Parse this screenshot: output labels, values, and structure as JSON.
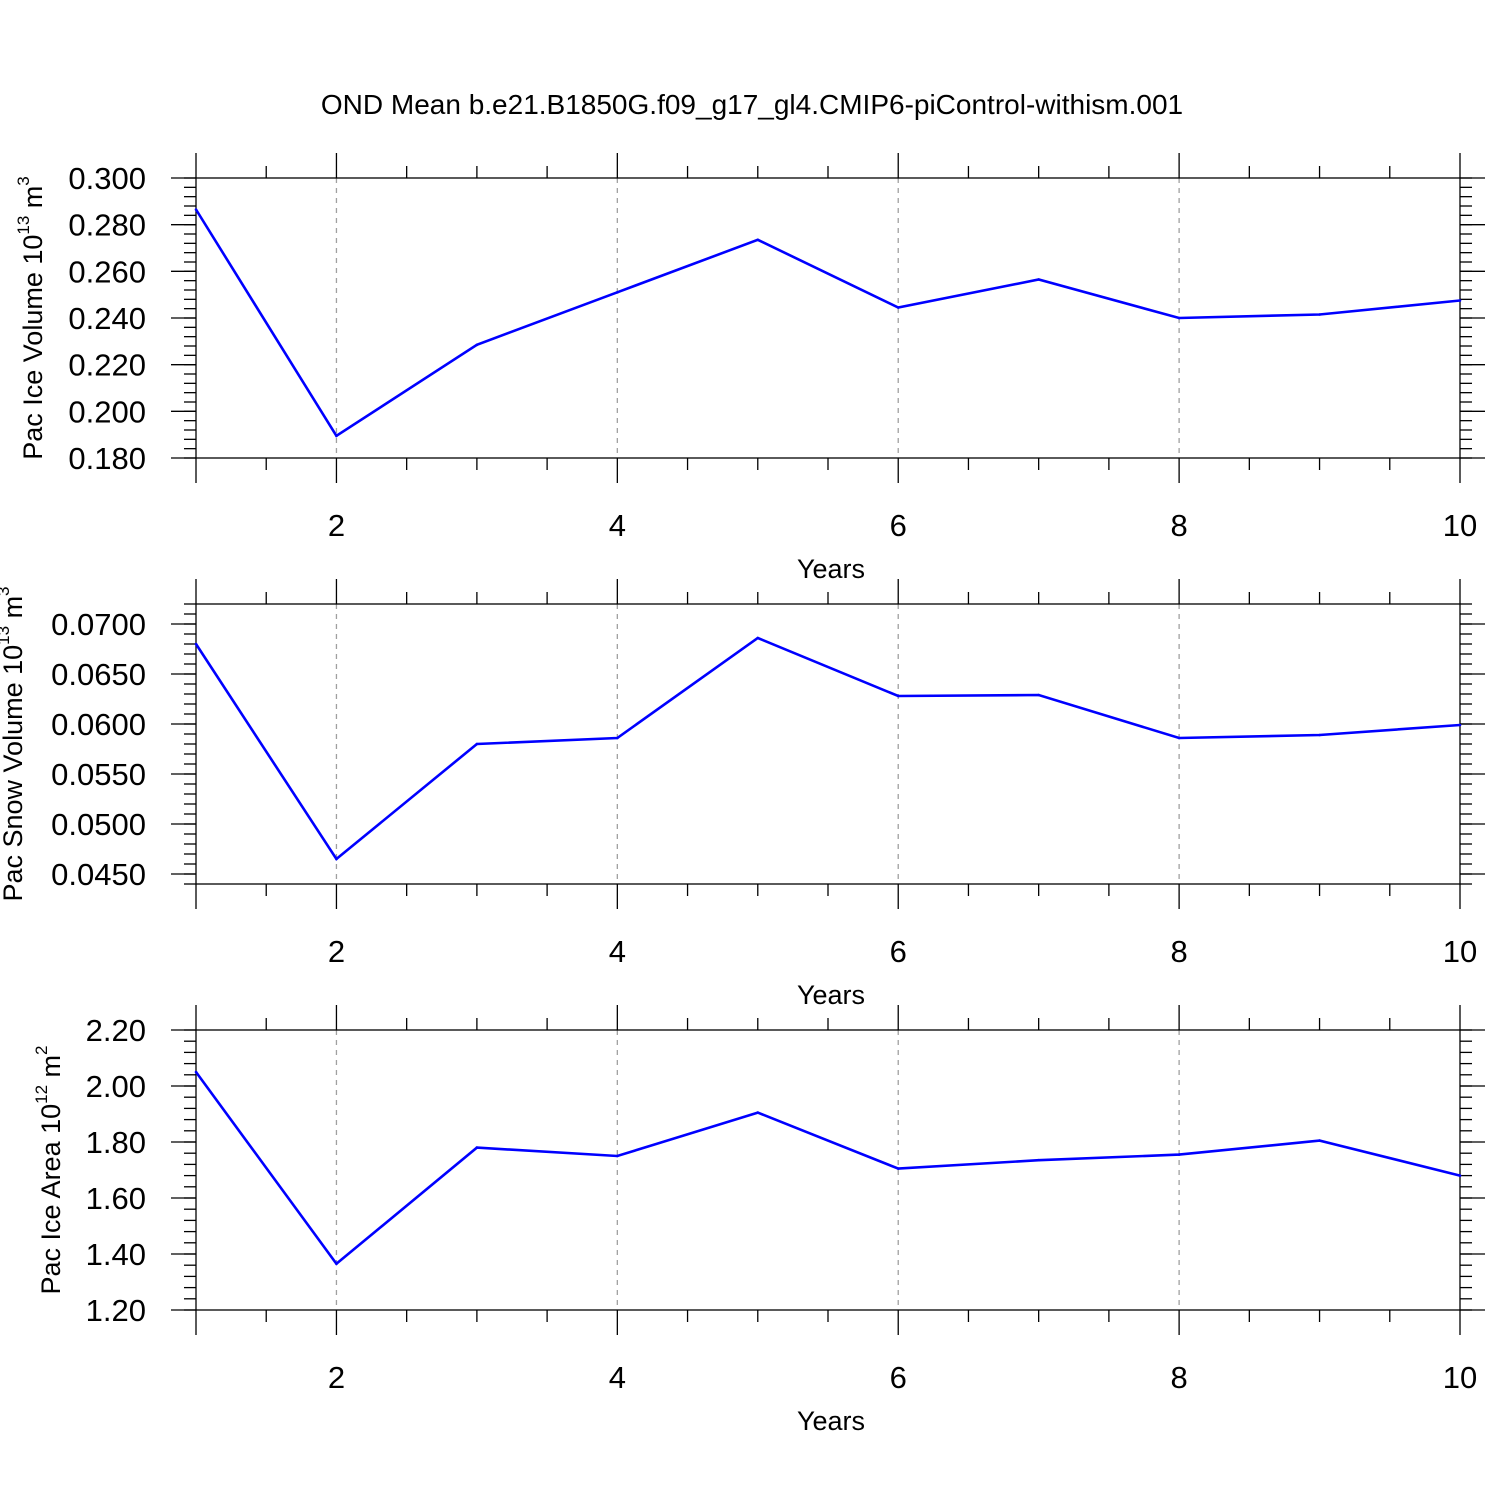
{
  "title": "OND Mean b.e21.B1850G.f09_g17_gl4.CMIP6-piControl-withism.001",
  "line_color": "#0000ff",
  "chart_data": [
    {
      "type": "line",
      "ylabel": {
        "text": "Pac Ice Volume 10",
        "exp": "13",
        "unit": " m",
        "unit_exp": "3"
      },
      "xlabel": "Years",
      "xlim": [
        1,
        10
      ],
      "ylim": [
        0.18,
        0.3
      ],
      "x_ticks": [
        2,
        4,
        6,
        8,
        10
      ],
      "y_ticks": [
        "0.180",
        "0.200",
        "0.220",
        "0.240",
        "0.260",
        "0.280",
        "0.300"
      ],
      "x_grid": "dashed",
      "x": [
        1,
        2,
        3,
        4,
        5,
        6,
        7,
        8,
        9,
        10
      ],
      "values": [
        0.2865,
        0.1895,
        0.2285,
        0.251,
        0.2735,
        0.2445,
        0.2565,
        0.24,
        0.2415,
        0.2475
      ]
    },
    {
      "type": "line",
      "ylabel": {
        "text": "Pac Snow Volume 10",
        "exp": "13",
        "unit": " m",
        "unit_exp": "3"
      },
      "xlabel": "Years",
      "xlim": [
        1,
        10
      ],
      "ylim": [
        0.044,
        0.072
      ],
      "x_ticks": [
        2,
        4,
        6,
        8,
        10
      ],
      "y_ticks": [
        "0.0450",
        "0.0500",
        "0.0550",
        "0.0600",
        "0.0650",
        "0.0700"
      ],
      "x_grid": "dashed",
      "x": [
        1,
        2,
        3,
        4,
        5,
        6,
        7,
        8,
        9,
        10
      ],
      "values": [
        0.068,
        0.0465,
        0.058,
        0.0586,
        0.0686,
        0.0628,
        0.0629,
        0.0586,
        0.0589,
        0.0599
      ]
    },
    {
      "type": "line",
      "ylabel": {
        "text": "Pac Ice Area 10",
        "exp": "12",
        "unit": " m",
        "unit_exp": "2"
      },
      "xlabel": "Years",
      "xlim": [
        1,
        10
      ],
      "ylim": [
        1.2,
        2.2
      ],
      "x_ticks": [
        2,
        4,
        6,
        8,
        10
      ],
      "y_ticks": [
        "1.20",
        "1.40",
        "1.60",
        "1.80",
        "2.00",
        "2.20"
      ],
      "x_grid": "dashed",
      "x": [
        1,
        2,
        3,
        4,
        5,
        6,
        7,
        8,
        9,
        10
      ],
      "values": [
        2.05,
        1.365,
        1.78,
        1.75,
        1.905,
        1.705,
        1.735,
        1.755,
        1.805,
        1.68
      ]
    }
  ]
}
